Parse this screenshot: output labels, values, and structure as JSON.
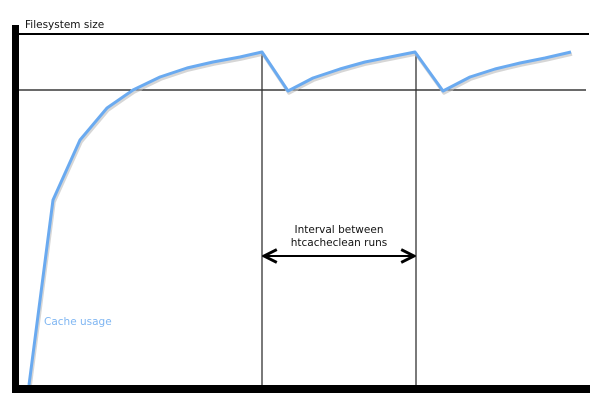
{
  "diagram": {
    "y_axis_label": "Filesystem size",
    "interval_label_line1": "Interval between",
    "interval_label_line2": "htcacheclean runs",
    "series_label": "Cache usage",
    "colors": {
      "cache_line": "#6aaaf0",
      "cache_label": "#7fb6f2",
      "axes": "#000000"
    }
  }
}
